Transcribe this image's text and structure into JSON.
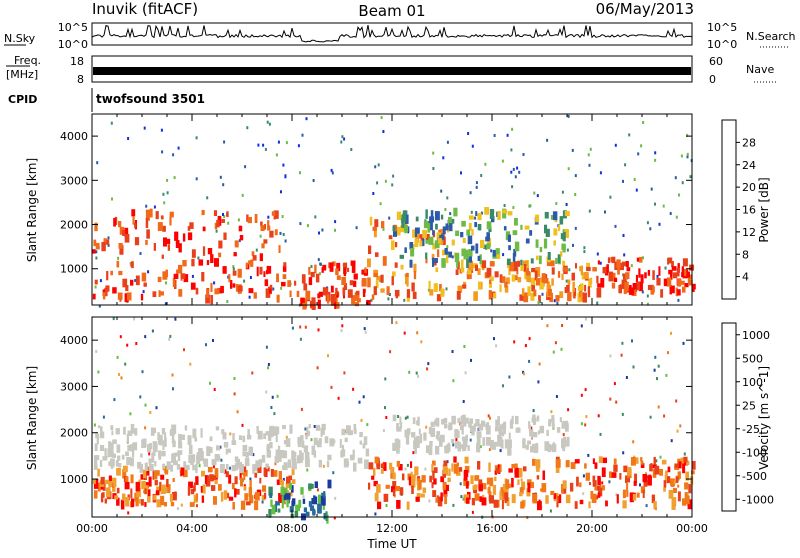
{
  "header": {
    "station": "Inuvik (fitACF)",
    "beam": "Beam 01",
    "date": "06/May/2013"
  },
  "panels": {
    "nsky": {
      "left_label": "N.Sky",
      "right_label": "N.Search",
      "ticks": [
        "10^5",
        "10^0"
      ],
      "right_ticks": [
        "10^5",
        "10^0"
      ]
    },
    "freq": {
      "left_label": "Freq.",
      "unit": "[MHz]",
      "ticks": [
        "18",
        "8"
      ],
      "right_label": "Nave",
      "right_ticks": [
        "60",
        "0"
      ]
    },
    "cpid": {
      "label": "CPID",
      "value": "twofsound 3501"
    }
  },
  "chart_data": [
    {
      "type": "heatmap",
      "name": "power-panel",
      "ylabel": "Slant Range [km]",
      "xlabel": "",
      "yticks": [
        1000,
        2000,
        3000,
        4000
      ],
      "ylim": [
        180,
        4500
      ],
      "xlim": [
        0,
        24
      ],
      "colorbar": {
        "label": "Power [dB]",
        "ticks": [
          "4",
          "8",
          "12",
          "16",
          "20",
          "24",
          "28"
        ],
        "colors": [
          "#1030e0",
          "#2a5aa8",
          "#3a8a6a",
          "#6dbb46",
          "#f0c020",
          "#f59a20",
          "#f06a1a",
          "#e8401a",
          "#ff0000"
        ]
      },
      "bands": [
        {
          "from": 0,
          "to": 7.5,
          "low": 400,
          "high": 2400,
          "level": "high"
        },
        {
          "from": 7.5,
          "to": 11,
          "low": 200,
          "high": 1200,
          "level": "high"
        },
        {
          "from": 11,
          "to": 14,
          "low": 400,
          "high": 2200,
          "level": "mid"
        },
        {
          "from": 14.5,
          "to": 20,
          "low": 400,
          "high": 1200,
          "level": "mid"
        },
        {
          "from": 20,
          "to": 24,
          "low": 500,
          "high": 1300,
          "level": "high"
        },
        {
          "from": 12,
          "to": 19,
          "low": 1200,
          "high": 2400,
          "level": "low"
        }
      ]
    },
    {
      "type": "heatmap",
      "name": "velocity-panel",
      "ylabel": "Slant Range [km]",
      "xlabel": "Time UT",
      "xticks": [
        "00:00",
        "04:00",
        "08:00",
        "12:00",
        "16:00",
        "20:00",
        "00:00"
      ],
      "yticks": [
        1000,
        2000,
        3000,
        4000
      ],
      "ylim": [
        180,
        4500
      ],
      "xlim": [
        0,
        24
      ],
      "colorbar": {
        "label": "Velocity [m s^-1]",
        "ticks": [
          "1000",
          "500",
          "100",
          "25",
          "-25",
          "-100",
          "-500",
          "-1000"
        ],
        "colors": [
          "#1a3aa0",
          "#2a6a9a",
          "#3a8a5a",
          "#60c040",
          "#c8c8c0",
          "#f0a030",
          "#f07818",
          "#e84018",
          "#ff0000"
        ]
      },
      "bands": [
        {
          "from": 0,
          "to": 8,
          "low": 500,
          "high": 1300,
          "level": "negative"
        },
        {
          "from": 0,
          "to": 11,
          "low": 1300,
          "high": 2200,
          "level": "zero"
        },
        {
          "from": 7,
          "to": 9.5,
          "low": 200,
          "high": 1000,
          "level": "positive"
        },
        {
          "from": 11,
          "to": 24,
          "low": 500,
          "high": 1500,
          "level": "negative"
        },
        {
          "from": 12,
          "to": 19,
          "low": 1700,
          "high": 2400,
          "level": "zero"
        }
      ]
    }
  ]
}
